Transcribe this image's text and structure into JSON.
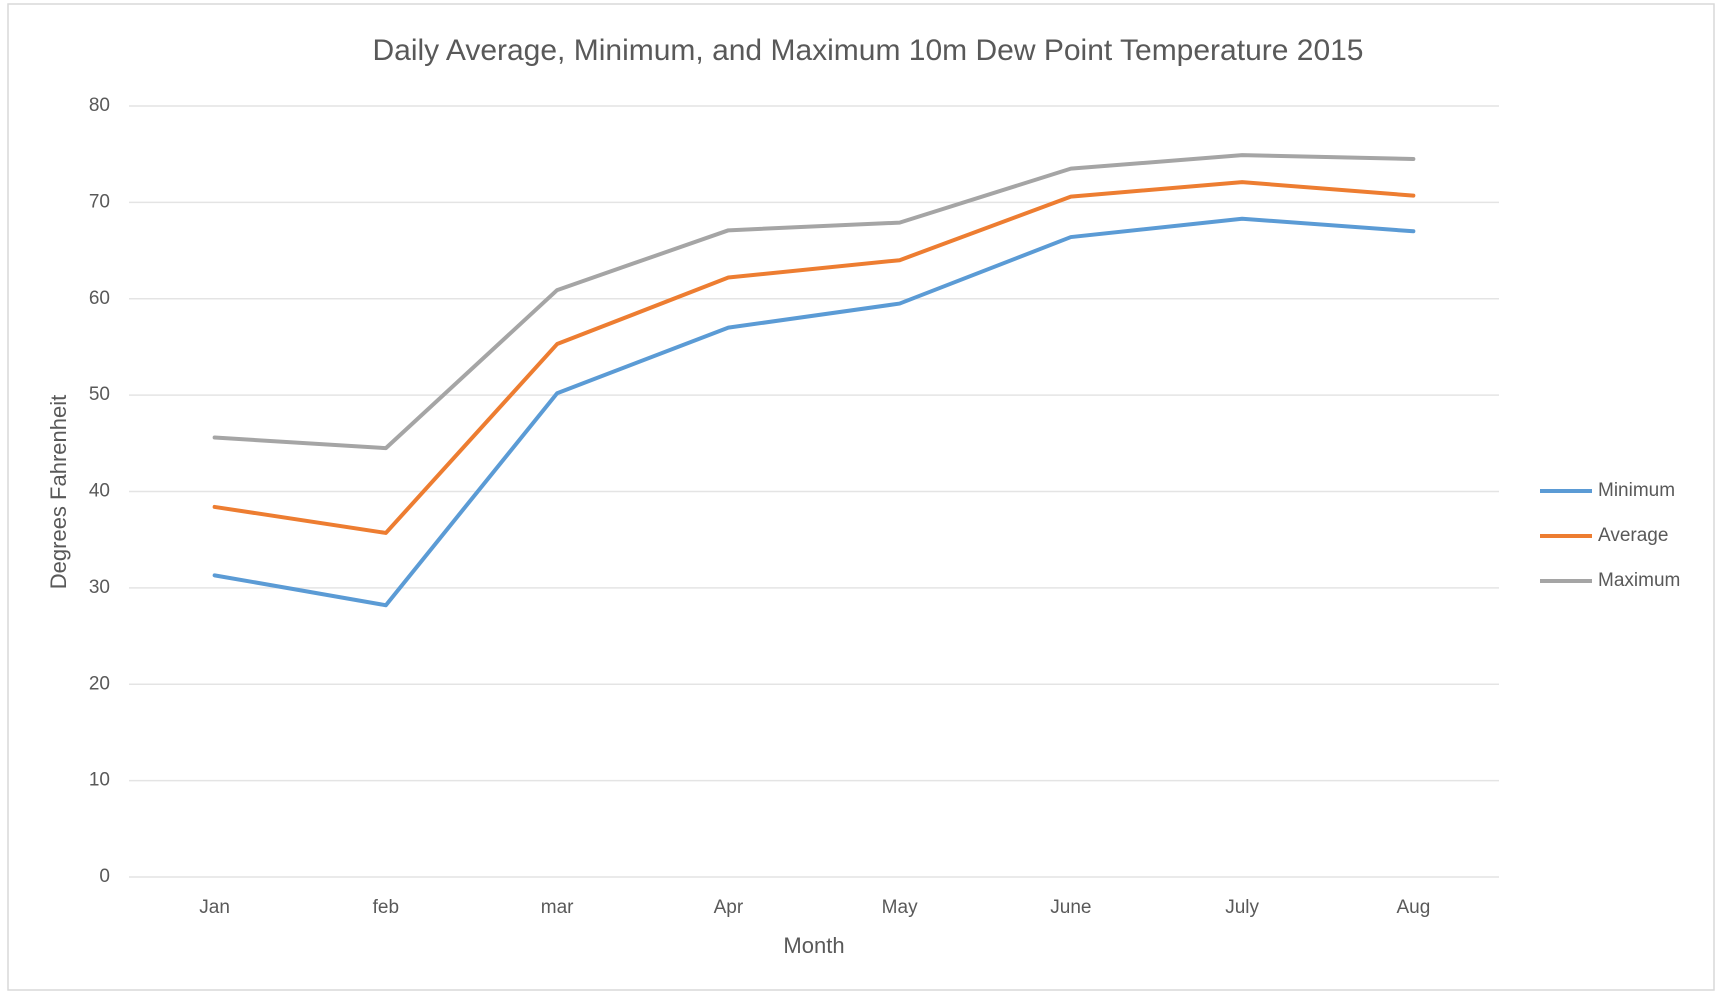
{
  "chart_data": {
    "type": "line",
    "title": "Daily Average, Minimum, and Maximum 10m Dew Point Temperature 2015",
    "xlabel": "Month",
    "ylabel": "Degrees Fahrenheit",
    "categories": [
      "Jan",
      "feb",
      "mar",
      "Apr",
      "May",
      "June",
      "July",
      "Aug"
    ],
    "series": [
      {
        "name": "Minimum",
        "color": "#5b9bd5",
        "values": [
          31.3,
          28.2,
          50.2,
          57,
          59.5,
          66.4,
          68.3,
          67
        ]
      },
      {
        "name": "Average",
        "color": "#ed7d31",
        "values": [
          38.4,
          35.7,
          55.3,
          62.2,
          64,
          70.6,
          72.1,
          70.7
        ]
      },
      {
        "name": "Maximum",
        "color": "#a5a5a5",
        "values": [
          45.6,
          44.5,
          60.9,
          67.1,
          67.9,
          73.5,
          74.9,
          74.5
        ]
      }
    ],
    "ylim": [
      0,
      80
    ],
    "yticks": [
      0,
      10,
      20,
      30,
      40,
      50,
      60,
      70,
      80
    ],
    "grid": true,
    "legend": "right"
  }
}
